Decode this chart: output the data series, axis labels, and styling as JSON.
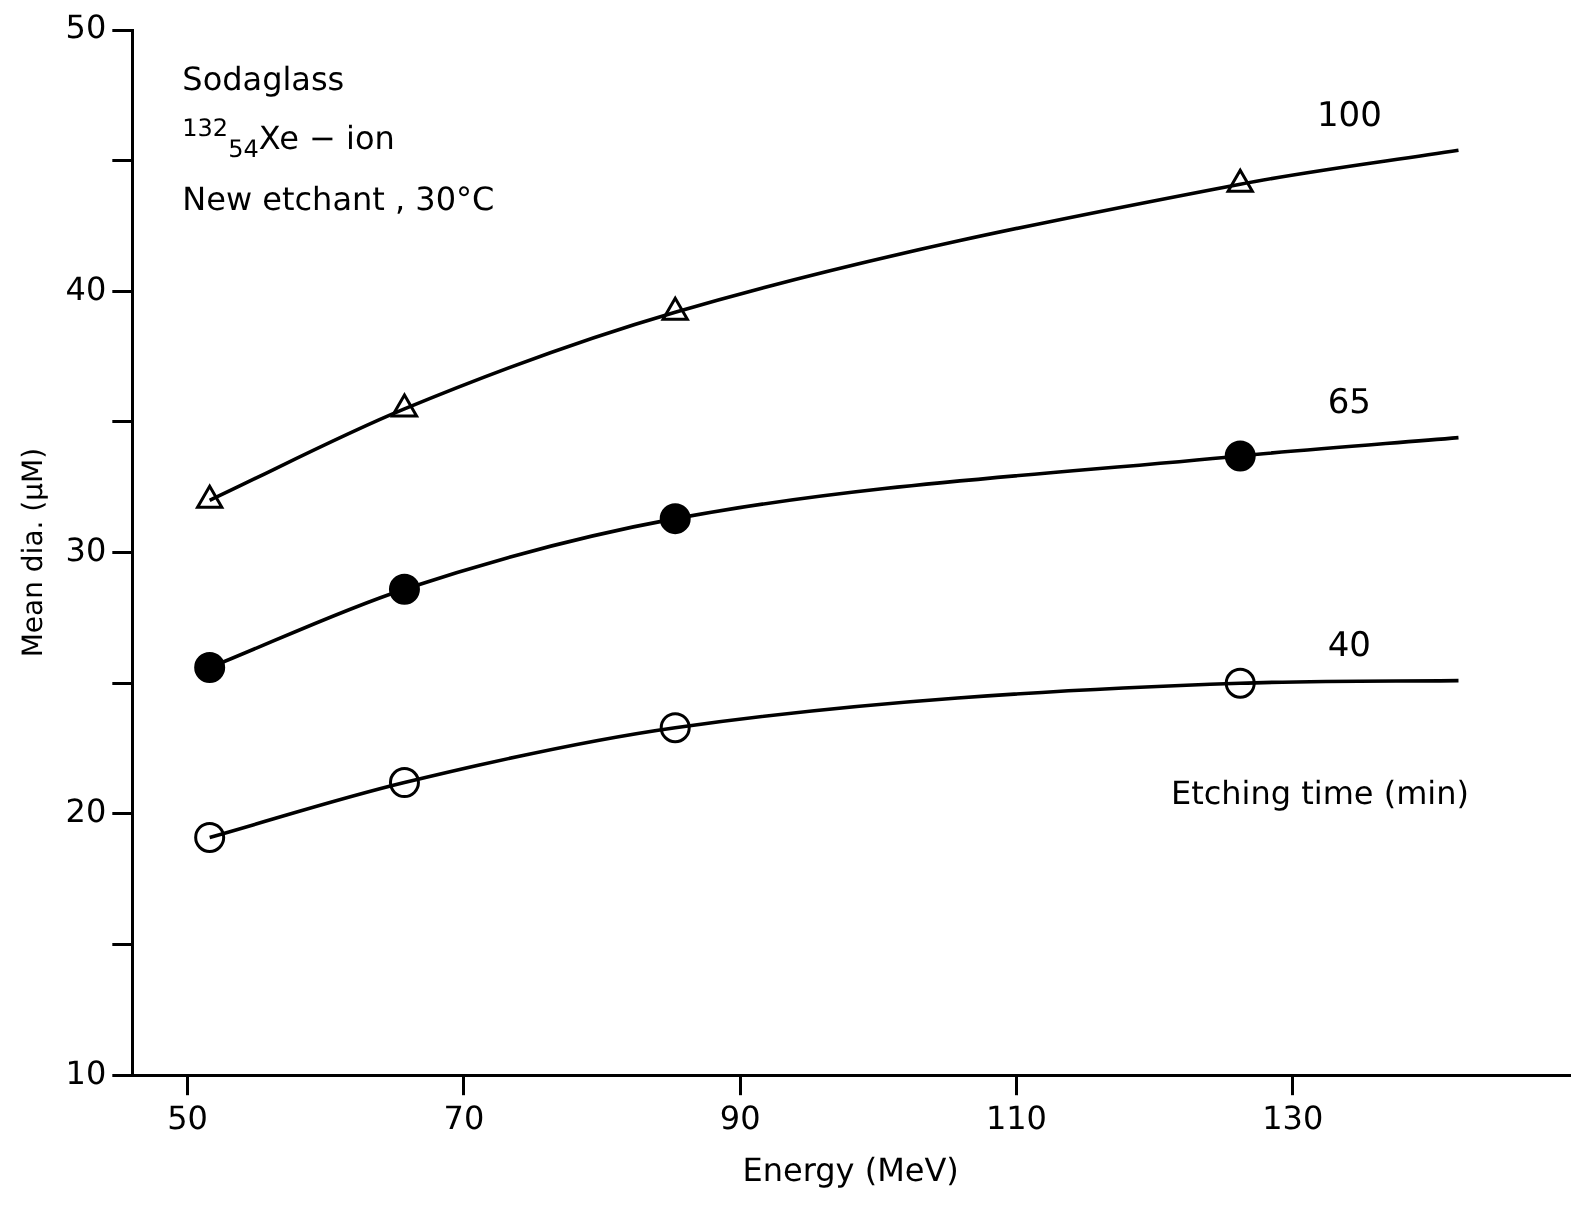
{
  "chart_data": {
    "type": "line",
    "xlabel": "Energy (MeV)",
    "ylabel": "Mean dia. (μM)",
    "legend_title": "Etching time (min)",
    "annotations": [
      "Sodaglass",
      "$^{132}$$_{54}$Xe − ion",
      "New etchant , 30°C"
    ],
    "xlim": [
      46,
      150
    ],
    "xticks": [
      50,
      70,
      90,
      110,
      130
    ],
    "ylim": [
      10,
      50
    ],
    "yticks": [
      10,
      {
        "value": 15,
        "label": null
      },
      20,
      {
        "value": 25,
        "label": null
      },
      30,
      {
        "value": 35,
        "label": null
      },
      40,
      {
        "value": 45,
        "label": null
      },
      50
    ],
    "grid": false,
    "legend": false,
    "line_style": "solid",
    "series": [
      {
        "name": "100",
        "marker": "none",
        "color": "#000000",
        "x": [
          51.6,
          65.7,
          85.3,
          126.2,
          142
        ],
        "values": [
          32.0,
          35.5,
          39.2,
          44.1,
          45.4
        ]
      },
      {
        "name": "65",
        "marker": "none",
        "color": "#000000",
        "x": [
          51.6,
          65.7,
          85.3,
          126.2,
          142
        ],
        "values": [
          25.6,
          28.6,
          31.3,
          33.7,
          34.4
        ]
      },
      {
        "name": "40",
        "marker": "none",
        "color": "#000000",
        "x": [
          51.6,
          65.7,
          85.3,
          126.2,
          142
        ],
        "values": [
          19.1,
          21.2,
          23.3,
          25.0,
          25.1
        ]
      },
      {
        "type": "scatter",
        "marker": "triangle",
        "color": "#ffffff",
        "x": [
          51.6,
          65.7,
          85.3,
          126.2
        ],
        "values": [
          32.0,
          35.5,
          39.2,
          44.1
        ]
      },
      {
        "type": "scatter",
        "marker": "circle",
        "color": "#000000",
        "x": [
          51.6,
          65.7,
          85.3,
          126.2
        ],
        "values": [
          25.6,
          28.6,
          31.3,
          33.7
        ]
      },
      {
        "type": "scatter",
        "marker": "circle",
        "color": "#ffffff",
        "x": [
          51.6,
          65.7,
          85.3,
          126.2
        ],
        "values": [
          19.1,
          21.2,
          23.3,
          25.0
        ]
      }
    ]
  }
}
